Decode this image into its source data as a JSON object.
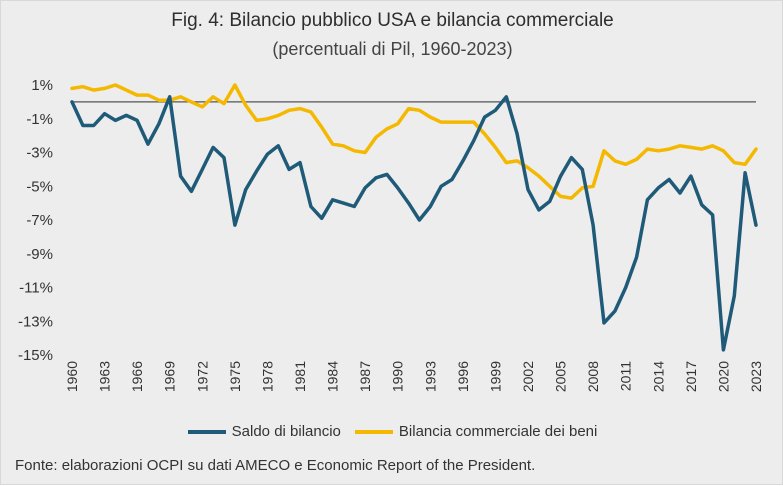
{
  "header": {
    "title": "Fig. 4: Bilancio pubblico USA e bilancia commerciale",
    "subtitle": "(percentuali di Pil, 1960-2023)"
  },
  "footer": {
    "source": "Fonte: elaborazioni OCPI su dati AMECO e Economic Report of the President."
  },
  "chart_data": {
    "type": "line",
    "title": "Fig. 4: Bilancio pubblico USA e bilancia commerciale",
    "subtitle": "(percentuali di Pil, 1960-2023)",
    "ylim": [
      -15,
      1
    ],
    "yticks": [
      1,
      -1,
      -3,
      -5,
      -7,
      -9,
      -11,
      -13,
      -15
    ],
    "ytick_labels": [
      "1%",
      "-1%",
      "-3%",
      "-5%",
      "-7%",
      "-9%",
      "-11%",
      "-13%",
      "-15%"
    ],
    "xlim": [
      1960,
      2023
    ],
    "xticks": [
      1960,
      1963,
      1966,
      1969,
      1972,
      1975,
      1978,
      1981,
      1984,
      1987,
      1990,
      1993,
      1996,
      1999,
      2002,
      2005,
      2008,
      2011,
      2014,
      2017,
      2020,
      2023
    ],
    "reference_line": 0,
    "grid": false,
    "legend_position": "bottom",
    "x": [
      1960,
      1961,
      1962,
      1963,
      1964,
      1965,
      1966,
      1967,
      1968,
      1969,
      1970,
      1971,
      1972,
      1973,
      1974,
      1975,
      1976,
      1977,
      1978,
      1979,
      1980,
      1981,
      1982,
      1983,
      1984,
      1985,
      1986,
      1987,
      1988,
      1989,
      1990,
      1991,
      1992,
      1993,
      1994,
      1995,
      1996,
      1997,
      1998,
      1999,
      2000,
      2001,
      2002,
      2003,
      2004,
      2005,
      2006,
      2007,
      2008,
      2009,
      2010,
      2011,
      2012,
      2013,
      2014,
      2015,
      2016,
      2017,
      2018,
      2019,
      2020,
      2021,
      2022,
      2023
    ],
    "series": [
      {
        "name": "Saldo di bilancio",
        "color": "#1f5b78",
        "values": [
          0.0,
          -1.4,
          -1.4,
          -0.7,
          -1.1,
          -0.8,
          -1.1,
          -2.5,
          -1.3,
          0.3,
          -4.4,
          -5.3,
          -4.0,
          -2.7,
          -3.3,
          -7.3,
          -5.2,
          -4.1,
          -3.1,
          -2.6,
          -4.0,
          -3.6,
          -6.2,
          -6.9,
          -5.8,
          -6.0,
          -6.2,
          -5.1,
          -4.5,
          -4.3,
          -5.1,
          -6.0,
          -7.0,
          -6.2,
          -5.0,
          -4.6,
          -3.5,
          -2.3,
          -0.9,
          -0.5,
          0.3,
          -1.9,
          -5.2,
          -6.4,
          -5.9,
          -4.4,
          -3.3,
          -4.0,
          -7.3,
          -13.1,
          -12.4,
          -11.0,
          -9.2,
          -5.8,
          -5.1,
          -4.6,
          -5.4,
          -4.4,
          -6.1,
          -6.7,
          -14.7,
          -11.5,
          -4.2,
          -7.3
        ]
      },
      {
        "name": "Bilancia commerciale dei beni",
        "color": "#f5b800",
        "values": [
          0.8,
          0.9,
          0.7,
          0.8,
          1.0,
          0.7,
          0.4,
          0.4,
          0.1,
          0.1,
          0.3,
          0.0,
          -0.3,
          0.3,
          -0.1,
          1.0,
          -0.2,
          -1.1,
          -1.0,
          -0.8,
          -0.5,
          -0.4,
          -0.6,
          -1.5,
          -2.5,
          -2.6,
          -2.9,
          -3.0,
          -2.1,
          -1.6,
          -1.3,
          -0.4,
          -0.5,
          -0.9,
          -1.2,
          -1.2,
          -1.2,
          -1.2,
          -1.9,
          -2.7,
          -3.6,
          -3.5,
          -3.9,
          -4.4,
          -5.0,
          -5.6,
          -5.7,
          -5.1,
          -5.0,
          -2.9,
          -3.5,
          -3.7,
          -3.4,
          -2.8,
          -2.9,
          -2.8,
          -2.6,
          -2.7,
          -2.8,
          -2.6,
          -2.9,
          -3.6,
          -3.7,
          -2.8
        ]
      }
    ]
  }
}
